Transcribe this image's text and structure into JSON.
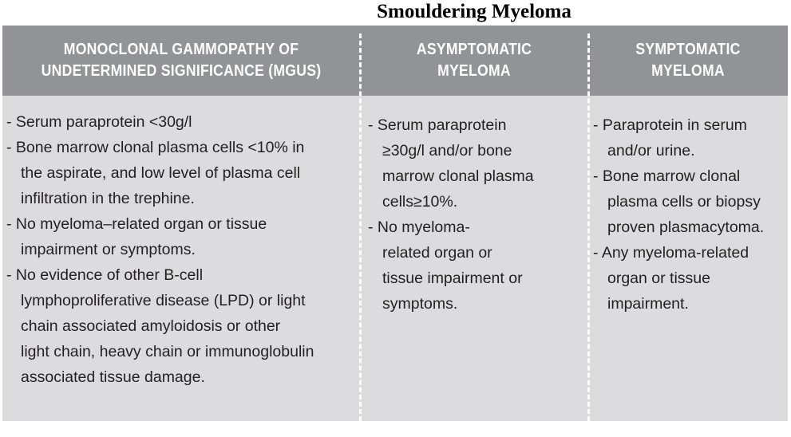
{
  "title": "Smouldering Myeloma",
  "columns": [
    {
      "header": "MONOCLONAL GAMMOPATHY OF\nUNDETERMINED SIGNIFICANCE (MGUS)",
      "items": [
        "- Serum paraprotein <30g/l",
        "- Bone marrow clonal plasma cells <10% in\nthe aspirate, and low level of plasma cell\ninfiltration in the trephine.",
        "- No myeloma–related organ or tissue\nimpairment or symptoms.",
        "- No evidence of other B-cell\nlymphoproliferative disease (LPD) or light\nchain associated amyloidosis or other\nlight chain, heavy chain or immunoglobulin\nassociated tissue damage."
      ]
    },
    {
      "header": "ASYMPTOMATIC\nMYELOMA",
      "items": [
        "- Serum paraprotein\n≥30g/l and/or bone\nmarrow clonal plasma\ncells≥10%.",
        "- No myeloma-\nrelated organ or\ntissue impairment or\nsymptoms."
      ]
    },
    {
      "header": "SYMPTOMATIC\nMYELOMA",
      "items": [
        "- Paraprotein in serum\nand/or urine.",
        "- Bone marrow clonal\nplasma cells or biopsy\nproven plasmacytoma.",
        "- Any myeloma-related\norgan or tissue\nimpairment."
      ]
    }
  ]
}
